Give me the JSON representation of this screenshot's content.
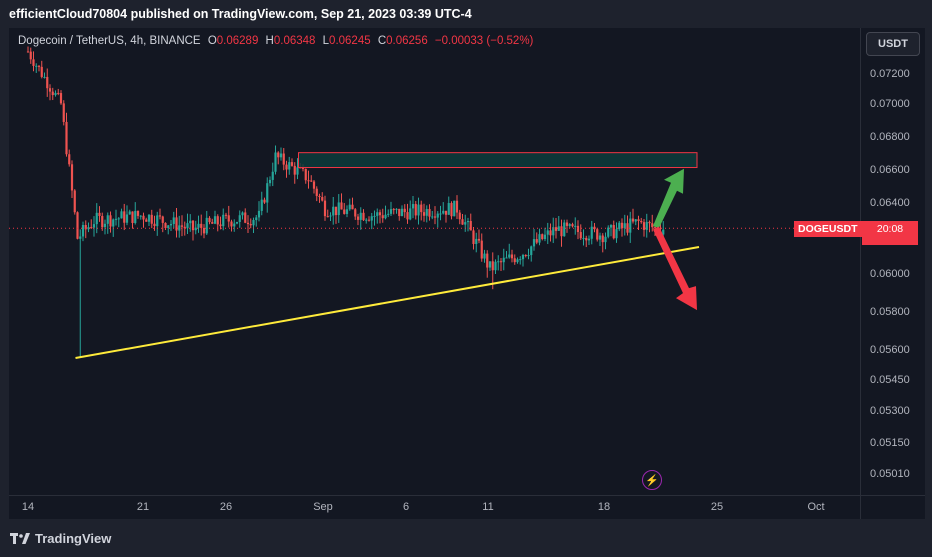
{
  "publisher_line": "efficientCloud70804 published on TradingView.com, Sep 21, 2023 03:39 UTC-4",
  "legend": {
    "symbol": "Dogecoin / TetherUS, 4h, BINANCE",
    "open_label": "O",
    "open": "0.06289",
    "high_label": "H",
    "high": "0.06348",
    "low_label": "L",
    "low": "0.06245",
    "close_label": "C",
    "close": "0.06256",
    "change": "−0.00033 (−0.52%)"
  },
  "currency_button": "USDT",
  "price_tag": {
    "symbol": "DOGEUSDT",
    "countdown": "20:08",
    "price": 0.06256
  },
  "footer_brand": "TradingView",
  "icons": {
    "brand_logo": "tradingview-logo-icon",
    "flash": "lightning-icon"
  },
  "colors": {
    "up": "#26a69a",
    "down": "#ef5350",
    "trendline": "#ffeb3b",
    "zone_border": "#f23645",
    "zone_fill": "#0d3b3b",
    "arrow_up": "#4caf50",
    "arrow_down": "#f23645",
    "price_line": "#f23645"
  },
  "chart_data": {
    "type": "candlestick",
    "timeframe": "4h",
    "price_axis_ticks": [
      "0.07200",
      "0.07000",
      "0.06800",
      "0.06600",
      "0.06400",
      "0.06200",
      "0.06000",
      "0.05800",
      "0.05600",
      "0.05450",
      "0.05300",
      "0.05150",
      "0.05010"
    ],
    "time_axis_ticks": [
      "14",
      "21",
      "26",
      "Sep",
      "6",
      "11",
      "18",
      "25",
      "Oct"
    ],
    "daily_closes_approx": [
      {
        "date": "Aug 14",
        "close": 0.0735
      },
      {
        "date": "Aug 16",
        "close": 0.07
      },
      {
        "date": "Aug 17",
        "close": 0.062
      },
      {
        "date": "Aug 18",
        "close": 0.063
      },
      {
        "date": "Aug 21",
        "close": 0.0633
      },
      {
        "date": "Aug 24",
        "close": 0.0625
      },
      {
        "date": "Aug 26",
        "close": 0.063
      },
      {
        "date": "Aug 28",
        "close": 0.0632
      },
      {
        "date": "Aug 29",
        "close": 0.0668
      },
      {
        "date": "Aug 31",
        "close": 0.0655
      },
      {
        "date": "Sep 1",
        "close": 0.0637
      },
      {
        "date": "Sep 4",
        "close": 0.0633
      },
      {
        "date": "Sep 6",
        "close": 0.0635
      },
      {
        "date": "Sep 9",
        "close": 0.0637
      },
      {
        "date": "Sep 11",
        "close": 0.0603
      },
      {
        "date": "Sep 13",
        "close": 0.0612
      },
      {
        "date": "Sep 15",
        "close": 0.0625
      },
      {
        "date": "Sep 18",
        "close": 0.0622
      },
      {
        "date": "Sep 20",
        "close": 0.0629
      },
      {
        "date": "Sep 21",
        "close": 0.06256
      }
    ],
    "annotations": {
      "resistance_zone": {
        "price_low": 0.06615,
        "price_high": 0.06705,
        "from": "Aug 31",
        "to": "Sep 23"
      },
      "trendline": {
        "from": {
          "date": "Aug 17",
          "price": 0.0556
        },
        "to": {
          "date": "Sep 23",
          "price": 0.0615
        }
      },
      "arrows": [
        {
          "direction": "up",
          "from_price": 0.0628,
          "to_price": 0.0662
        },
        {
          "direction": "down",
          "from_price": 0.0626,
          "to_price": 0.0581
        }
      ]
    }
  }
}
